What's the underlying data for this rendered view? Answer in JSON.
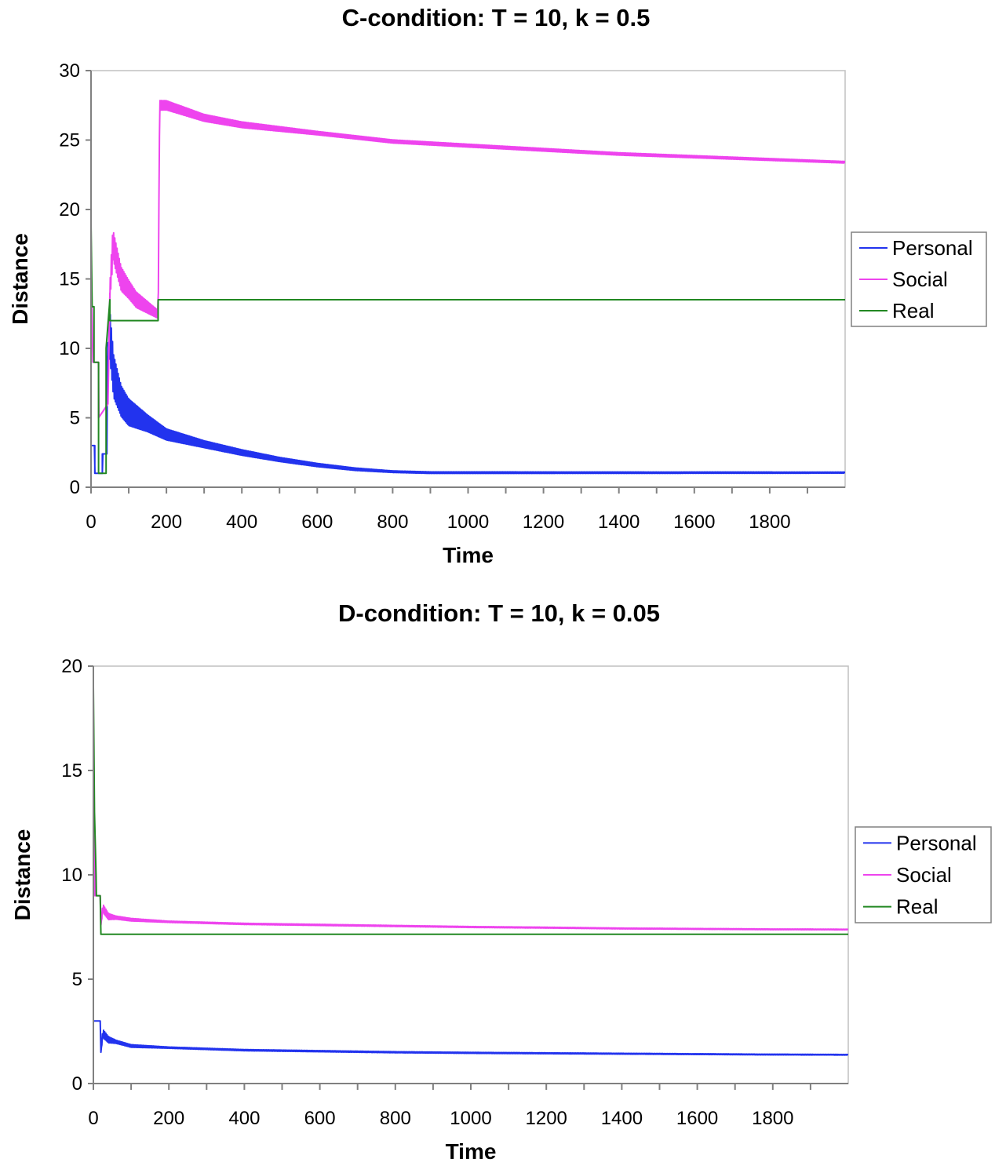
{
  "chart_data": [
    {
      "type": "line",
      "title": "C-condition: T = 10, k = 0.5",
      "xlabel": "Time",
      "ylabel": "Distance",
      "xlim": [
        0,
        2000
      ],
      "ylim": [
        0,
        30
      ],
      "xticks": [
        0,
        200,
        400,
        600,
        800,
        1000,
        1200,
        1400,
        1600,
        1800
      ],
      "yticks": [
        0,
        5,
        10,
        15,
        20,
        25,
        30
      ],
      "grid": false,
      "legend_position": "right",
      "series": [
        {
          "name": "Personal",
          "color": "#2233ee",
          "points": [
            [
              0,
              3
            ],
            [
              10,
              3
            ],
            [
              10,
              1
            ],
            [
              30,
              1
            ],
            [
              30,
              2.4
            ],
            [
              42,
              2.4
            ],
            [
              42,
              9
            ],
            [
              50,
              11
            ],
            [
              60,
              8
            ],
            [
              80,
              6.2
            ],
            [
              100,
              5.4
            ],
            [
              150,
              4.6
            ],
            [
              200,
              3.8
            ],
            [
              300,
              3.1
            ],
            [
              400,
              2.5
            ],
            [
              500,
              2.0
            ],
            [
              600,
              1.6
            ],
            [
              700,
              1.3
            ],
            [
              800,
              1.12
            ],
            [
              900,
              1.05
            ],
            [
              1000,
              1.05
            ],
            [
              1500,
              1.05
            ],
            [
              2000,
              1.05
            ]
          ],
          "noise": [
            [
              0,
              0
            ],
            [
              10,
              0
            ],
            [
              42,
              0
            ],
            [
              50,
              3.5
            ],
            [
              80,
              2.2
            ],
            [
              150,
              1.2
            ],
            [
              200,
              0.8
            ],
            [
              300,
              0.5
            ],
            [
              500,
              0.3
            ],
            [
              800,
              0.12
            ],
            [
              2000,
              0.08
            ]
          ]
        },
        {
          "name": "Social",
          "color": "#ee44ee",
          "points": [
            [
              0,
              16
            ],
            [
              5,
              9
            ],
            [
              20,
              9
            ],
            [
              20,
              5
            ],
            [
              45,
              6
            ],
            [
              50,
              14
            ],
            [
              58,
              17.5
            ],
            [
              80,
              15
            ],
            [
              120,
              13.5
            ],
            [
              175,
              12.5
            ],
            [
              178,
              12.5
            ],
            [
              182,
              27.5
            ],
            [
              200,
              27.5
            ],
            [
              300,
              26.6
            ],
            [
              400,
              26.1
            ],
            [
              600,
              25.5
            ],
            [
              800,
              24.9
            ],
            [
              1000,
              24.6
            ],
            [
              1200,
              24.3
            ],
            [
              1400,
              24.0
            ],
            [
              1600,
              23.8
            ],
            [
              1800,
              23.6
            ],
            [
              2000,
              23.4
            ]
          ],
          "noise": [
            [
              0,
              0
            ],
            [
              45,
              0
            ],
            [
              55,
              2.2
            ],
            [
              100,
              1.3
            ],
            [
              175,
              0.6
            ],
            [
              180,
              0.7
            ],
            [
              300,
              0.5
            ],
            [
              600,
              0.25
            ],
            [
              2000,
              0.12
            ]
          ]
        },
        {
          "name": "Real",
          "color": "#228822",
          "points": [
            [
              0,
              19
            ],
            [
              3,
              13
            ],
            [
              8,
              13
            ],
            [
              8,
              9
            ],
            [
              20,
              9
            ],
            [
              20,
              1
            ],
            [
              40,
              1
            ],
            [
              40,
              10
            ],
            [
              50,
              13.5
            ],
            [
              50,
              12
            ],
            [
              178,
              12
            ],
            [
              178,
              13.5
            ],
            [
              2000,
              13.5
            ]
          ],
          "noise": []
        }
      ]
    },
    {
      "type": "line",
      "title": "D-condition: T = 10, k = 0.05",
      "xlabel": "Time",
      "ylabel": "Distance",
      "xlim": [
        0,
        2000
      ],
      "ylim": [
        0,
        20
      ],
      "xticks": [
        0,
        200,
        400,
        600,
        800,
        1000,
        1200,
        1400,
        1600,
        1800
      ],
      "yticks": [
        0,
        5,
        10,
        15,
        20
      ],
      "grid": false,
      "legend_position": "right",
      "series": [
        {
          "name": "Personal",
          "color": "#2233ee",
          "points": [
            [
              0,
              3
            ],
            [
              18,
              3
            ],
            [
              20,
              1.5
            ],
            [
              25,
              2.4
            ],
            [
              40,
              2.1
            ],
            [
              100,
              1.8
            ],
            [
              200,
              1.72
            ],
            [
              400,
              1.6
            ],
            [
              600,
              1.55
            ],
            [
              800,
              1.5
            ],
            [
              1000,
              1.47
            ],
            [
              1200,
              1.45
            ],
            [
              1400,
              1.43
            ],
            [
              1600,
              1.41
            ],
            [
              1800,
              1.39
            ],
            [
              2000,
              1.38
            ]
          ],
          "noise": [
            [
              0,
              0
            ],
            [
              20,
              0
            ],
            [
              25,
              0.4
            ],
            [
              60,
              0.15
            ],
            [
              200,
              0.06
            ],
            [
              2000,
              0.03
            ]
          ]
        },
        {
          "name": "Social",
          "color": "#ee44ee",
          "points": [
            [
              0,
              16
            ],
            [
              4,
              9
            ],
            [
              18,
              9
            ],
            [
              20,
              7.6
            ],
            [
              25,
              8.4
            ],
            [
              40,
              8.0
            ],
            [
              100,
              7.85
            ],
            [
              200,
              7.75
            ],
            [
              400,
              7.65
            ],
            [
              600,
              7.6
            ],
            [
              800,
              7.55
            ],
            [
              1000,
              7.5
            ],
            [
              1200,
              7.47
            ],
            [
              1400,
              7.43
            ],
            [
              1600,
              7.41
            ],
            [
              1800,
              7.39
            ],
            [
              2000,
              7.38
            ]
          ],
          "noise": [
            [
              0,
              0
            ],
            [
              20,
              0
            ],
            [
              25,
              0.4
            ],
            [
              60,
              0.15
            ],
            [
              200,
              0.06
            ],
            [
              2000,
              0.03
            ]
          ]
        },
        {
          "name": "Real",
          "color": "#228822",
          "points": [
            [
              0,
              19
            ],
            [
              3,
              13
            ],
            [
              7,
              10
            ],
            [
              8,
              9
            ],
            [
              18,
              9
            ],
            [
              20,
              7.15
            ],
            [
              2000,
              7.15
            ]
          ],
          "noise": []
        }
      ]
    }
  ]
}
